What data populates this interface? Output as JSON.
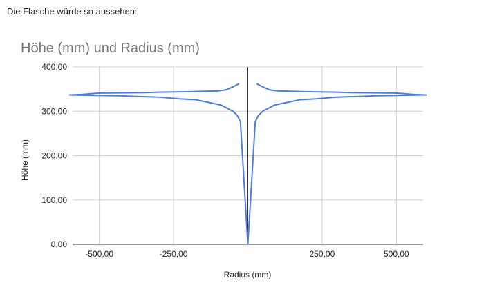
{
  "intro": "Die Flasche würde so aussehen:",
  "chart_data": {
    "type": "line",
    "title": "Höhe (mm) und Radius (mm)",
    "x_label": "Radius (mm)",
    "y_label": "Höhe (mm)",
    "series": [
      {
        "color": "#4a7be0",
        "x": [
          -30,
          -50,
          -75,
          -100,
          -200,
          -300,
          -350,
          -500,
          -520,
          -560,
          -600,
          -430,
          -400,
          -300,
          -230,
          -175,
          -90,
          -50,
          -35,
          -25,
          0,
          25,
          35,
          50,
          90,
          175,
          230,
          300,
          400,
          430,
          600,
          560,
          520,
          500,
          350,
          300,
          200,
          100,
          75,
          50,
          30
        ],
        "values": [
          362,
          355,
          348,
          346,
          344,
          343,
          342,
          341,
          340,
          338,
          337,
          335,
          334,
          332,
          328,
          326,
          314,
          300,
          290,
          276,
          0,
          276,
          290,
          300,
          314,
          326,
          328,
          332,
          334,
          335,
          337,
          338,
          340,
          341,
          342,
          343,
          344,
          346,
          348,
          355,
          362
        ]
      }
    ],
    "xlim": [
      -590,
      590
    ],
    "ylim": [
      0,
      400
    ],
    "xticks": [
      {
        "value": -500,
        "label": "-500,00"
      },
      {
        "value": -250,
        "label": "-250,00"
      },
      {
        "value": 250,
        "label": "250,00"
      },
      {
        "value": 500,
        "label": "500,00"
      }
    ],
    "yticks": [
      {
        "value": 0,
        "label": "0,00"
      },
      {
        "value": 100,
        "label": "100,00"
      },
      {
        "value": 200,
        "label": "200,00"
      },
      {
        "value": 300,
        "label": "300,00"
      },
      {
        "value": 400,
        "label": "400,00"
      }
    ],
    "grid": true
  }
}
